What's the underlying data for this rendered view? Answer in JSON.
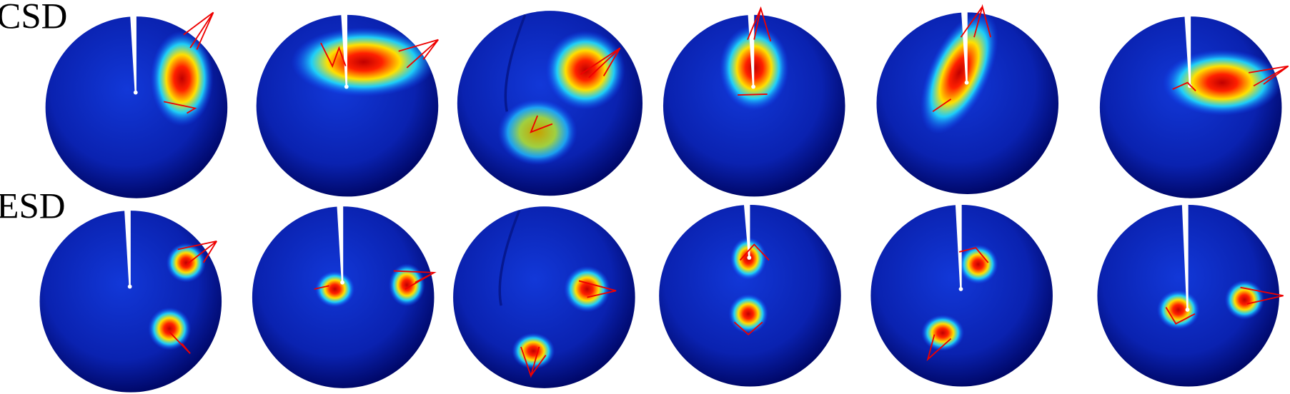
{
  "rows": [
    {
      "label": "CSD"
    },
    {
      "label": "ESD"
    }
  ]
}
